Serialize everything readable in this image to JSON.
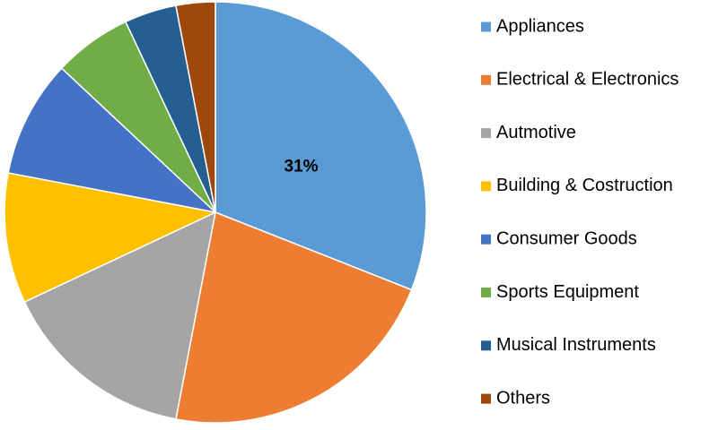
{
  "chart_data": {
    "type": "pie",
    "categories": [
      "Appliances",
      "Electrical & Electronics",
      "Autmotive",
      "Building & Costruction",
      "Consumer Goods",
      "Sports Equipment",
      "Musical Instruments",
      "Others"
    ],
    "values": [
      31,
      22,
      15,
      10,
      9,
      6,
      4,
      3
    ],
    "value_labels": [
      "31%",
      null,
      null,
      null,
      null,
      null,
      null,
      null
    ],
    "colors": [
      "#5b9bd5",
      "#ed7d31",
      "#a5a5a5",
      "#ffc000",
      "#4472c4",
      "#70ad47",
      "#255e91",
      "#9e480e"
    ],
    "legend": "right"
  }
}
